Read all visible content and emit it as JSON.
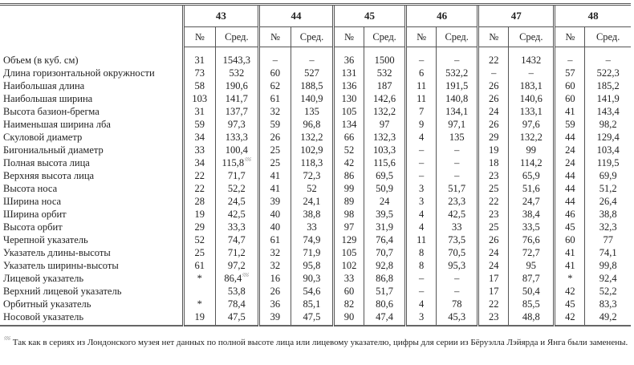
{
  "table": {
    "groups": [
      "43",
      "44",
      "45",
      "46",
      "47",
      "48"
    ],
    "sub_headers": [
      "№",
      "Сред."
    ],
    "rows": [
      {
        "label": "Объем (в куб. см)",
        "values": [
          "31",
          "1543,3",
          "–",
          "–",
          "36",
          "1500",
          "–",
          "–",
          "22",
          "1432",
          "–",
          "–"
        ]
      },
      {
        "label": "Длина горизонтальной окружности",
        "values": [
          "73",
          "532",
          "60",
          "527",
          "131",
          "532",
          "6",
          "532,2",
          "–",
          "–",
          "57",
          "522,3"
        ]
      },
      {
        "label": "Наибольшая длина",
        "values": [
          "58",
          "190,6",
          "62",
          "188,5",
          "136",
          "187",
          "11",
          "191,5",
          "26",
          "183,1",
          "60",
          "185,2"
        ]
      },
      {
        "label": "Наибольшая ширина",
        "values": [
          "103",
          "141,7",
          "61",
          "140,9",
          "130",
          "142,6",
          "11",
          "140,8",
          "26",
          "140,6",
          "60",
          "141,9"
        ]
      },
      {
        "label": "Высота базион-брегма",
        "values": [
          "31",
          "137,7",
          "32",
          "135",
          "105",
          "132,2",
          "7",
          "134,1",
          "24",
          "133,1",
          "41",
          "143,4"
        ]
      },
      {
        "label": "Наименьшая ширина лба",
        "values": [
          "59",
          "97,3",
          "59",
          "96,8",
          "134",
          "97",
          "9",
          "97,1",
          "26",
          "97,6",
          "59",
          "98,2"
        ]
      },
      {
        "label": "Скуловой диаметр",
        "values": [
          "34",
          "133,3",
          "26",
          "132,2",
          "66",
          "132,3",
          "4",
          "135",
          "29",
          "132,2",
          "44",
          "129,4"
        ]
      },
      {
        "label": "Бигониальный диаметр",
        "values": [
          "33",
          "100,4",
          "25",
          "102,9",
          "52",
          "103,3",
          "–",
          "–",
          "19",
          "99",
          "24",
          "103,4"
        ]
      },
      {
        "label": "Полная высота лица",
        "values": [
          "34",
          "115,8",
          "25",
          "118,3",
          "42",
          "115,6",
          "–",
          "–",
          "18",
          "114,2",
          "24",
          "119,5"
        ],
        "footnote_cells": [
          1
        ]
      },
      {
        "label": "Верхняя высота лица",
        "values": [
          "22",
          "71,7",
          "41",
          "72,3",
          "86",
          "69,5",
          "–",
          "–",
          "23",
          "65,9",
          "44",
          "69,9"
        ]
      },
      {
        "label": "Высота носа",
        "values": [
          "22",
          "52,2",
          "41",
          "52",
          "99",
          "50,9",
          "3",
          "51,7",
          "25",
          "51,6",
          "44",
          "51,2"
        ]
      },
      {
        "label": "Ширина носа",
        "values": [
          "28",
          "24,5",
          "39",
          "24,1",
          "89",
          "24",
          "3",
          "23,3",
          "22",
          "24,7",
          "44",
          "26,4"
        ]
      },
      {
        "label": "Ширина орбит",
        "values": [
          "19",
          "42,5",
          "40",
          "38,8",
          "98",
          "39,5",
          "4",
          "42,5",
          "23",
          "38,4",
          "46",
          "38,8"
        ]
      },
      {
        "label": "Высота орбит",
        "values": [
          "29",
          "33,3",
          "40",
          "33",
          "97",
          "31,9",
          "4",
          "33",
          "25",
          "33,5",
          "45",
          "32,3"
        ]
      },
      {
        "label": "Черепной указатель",
        "values": [
          "52",
          "74,7",
          "61",
          "74,9",
          "129",
          "76,4",
          "11",
          "73,5",
          "26",
          "76,6",
          "60",
          "77"
        ]
      },
      {
        "label": "Указатель длины-высоты",
        "values": [
          "25",
          "71,2",
          "32",
          "71,9",
          "105",
          "70,7",
          "8",
          "70,5",
          "24",
          "72,7",
          "41",
          "74,1"
        ]
      },
      {
        "label": "Указатель ширины-высоты",
        "values": [
          "61",
          "97,2",
          "32",
          "95,8",
          "102",
          "92,8",
          "8",
          "95,3",
          "24",
          "95",
          "41",
          "99,8"
        ]
      },
      {
        "label": "Лицевой указатель",
        "values": [
          "*",
          "86,4",
          "16",
          "90,3",
          "33",
          "86,8",
          "–",
          "–",
          "17",
          "87,7",
          "*",
          "92,4"
        ],
        "footnote_cells": [
          1
        ]
      },
      {
        "label": "Верхний лицевой указатель",
        "values": [
          "",
          "53,8",
          "26",
          "54,6",
          "60",
          "51,7",
          "–",
          "–",
          "17",
          "50,4",
          "42",
          "52,2"
        ]
      },
      {
        "label": "Орбитный указатель",
        "values": [
          "*",
          "78,4",
          "36",
          "85,1",
          "82",
          "80,6",
          "4",
          "78",
          "22",
          "85,5",
          "45",
          "83,3"
        ]
      },
      {
        "label": "Носовой указатель",
        "values": [
          "19",
          "47,5",
          "39",
          "47,5",
          "90",
          "47,4",
          "3",
          "45,3",
          "23",
          "48,8",
          "42",
          "49,2"
        ]
      }
    ]
  },
  "footnote": {
    "text": "Так как в сериях из Лондонского музея нет данных по полной высоте лица или лицевому указателю, цифры для серии из Бёруэлла Лэйярда и Янга были заменены."
  }
}
